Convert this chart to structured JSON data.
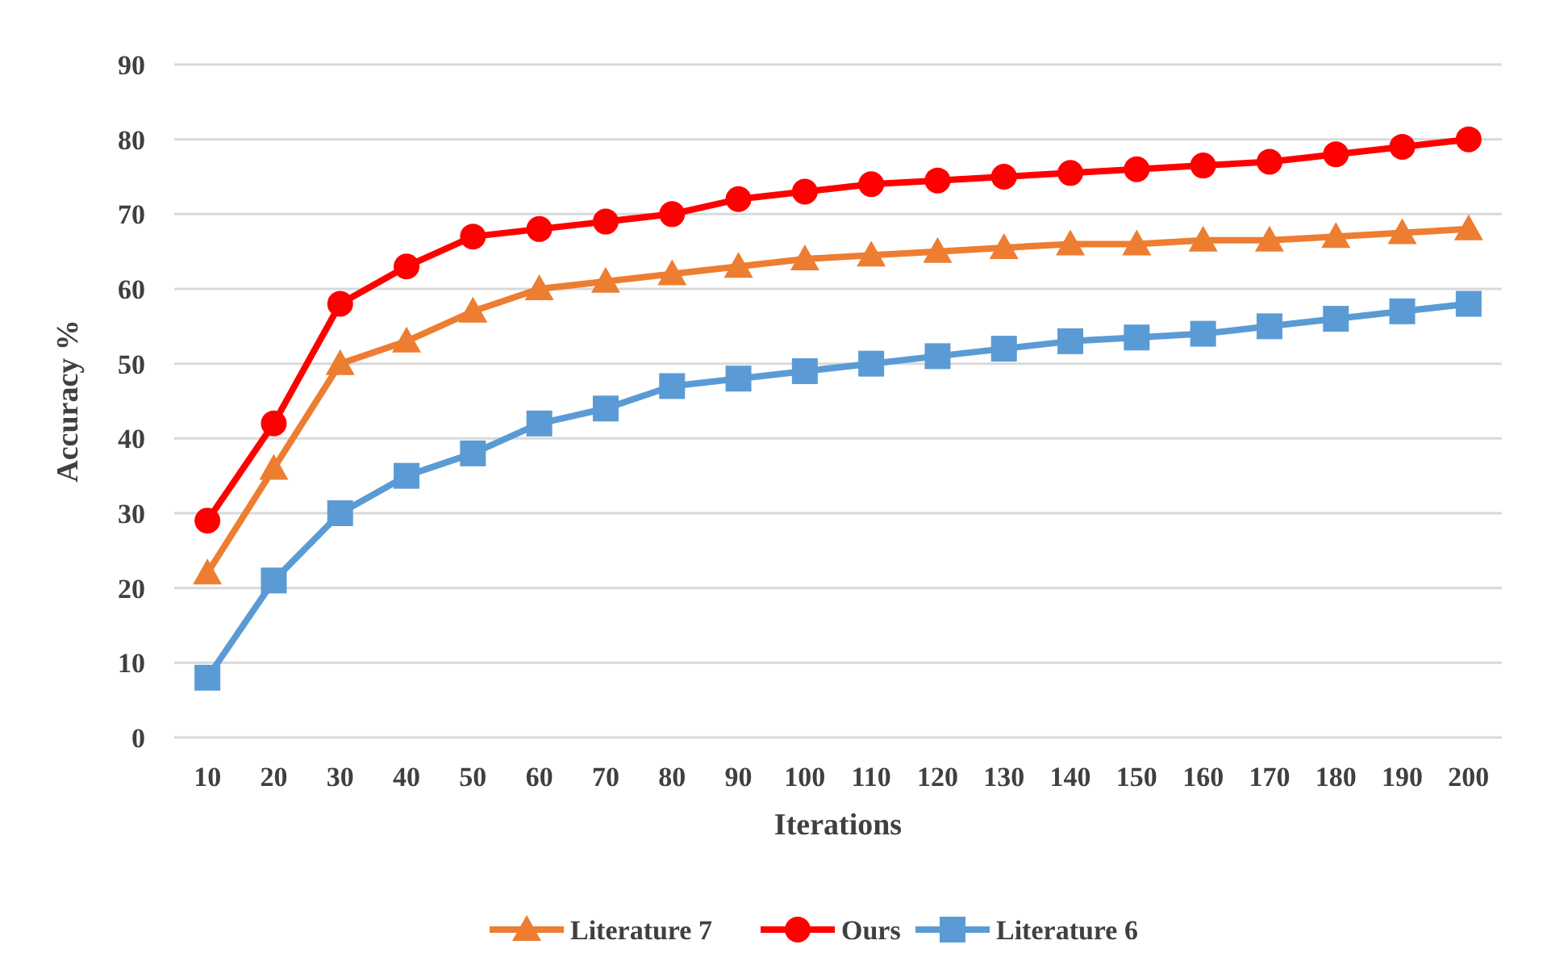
{
  "chart_data": {
    "type": "line",
    "xlabel": "Iterations",
    "ylabel": "Accuracy %",
    "categories": [
      "10",
      "20",
      "30",
      "40",
      "50",
      "60",
      "70",
      "80",
      "90",
      "100",
      "110",
      "120",
      "130",
      "140",
      "150",
      "160",
      "170",
      "180",
      "190",
      "200"
    ],
    "series": [
      {
        "name": "Literature 7",
        "color": "#ed7d31",
        "marker": "triangle",
        "values": [
          22,
          36,
          50,
          53,
          57,
          60,
          61,
          62,
          63,
          64,
          64.5,
          65,
          65.5,
          66,
          66,
          66.5,
          66.5,
          67,
          67.5,
          68
        ]
      },
      {
        "name": "Ours",
        "color": "#ff0000",
        "marker": "circle",
        "values": [
          29,
          42,
          58,
          63,
          67,
          68,
          69,
          70,
          72,
          73,
          74,
          74.5,
          75,
          75.5,
          76,
          76.5,
          77,
          78,
          79,
          80
        ]
      },
      {
        "name": "Literature 6",
        "color": "#5b9bd5",
        "marker": "square",
        "values": [
          8,
          21,
          30,
          35,
          38,
          42,
          44,
          47,
          48,
          49,
          50,
          51,
          52,
          53,
          53.5,
          54,
          55,
          56,
          57,
          58
        ]
      }
    ],
    "ylim": [
      0,
      90
    ],
    "yticks": [
      0,
      10,
      20,
      30,
      40,
      50,
      60,
      70,
      80,
      90
    ],
    "grid": "y",
    "legend": "bottom",
    "line_style": "solid"
  }
}
